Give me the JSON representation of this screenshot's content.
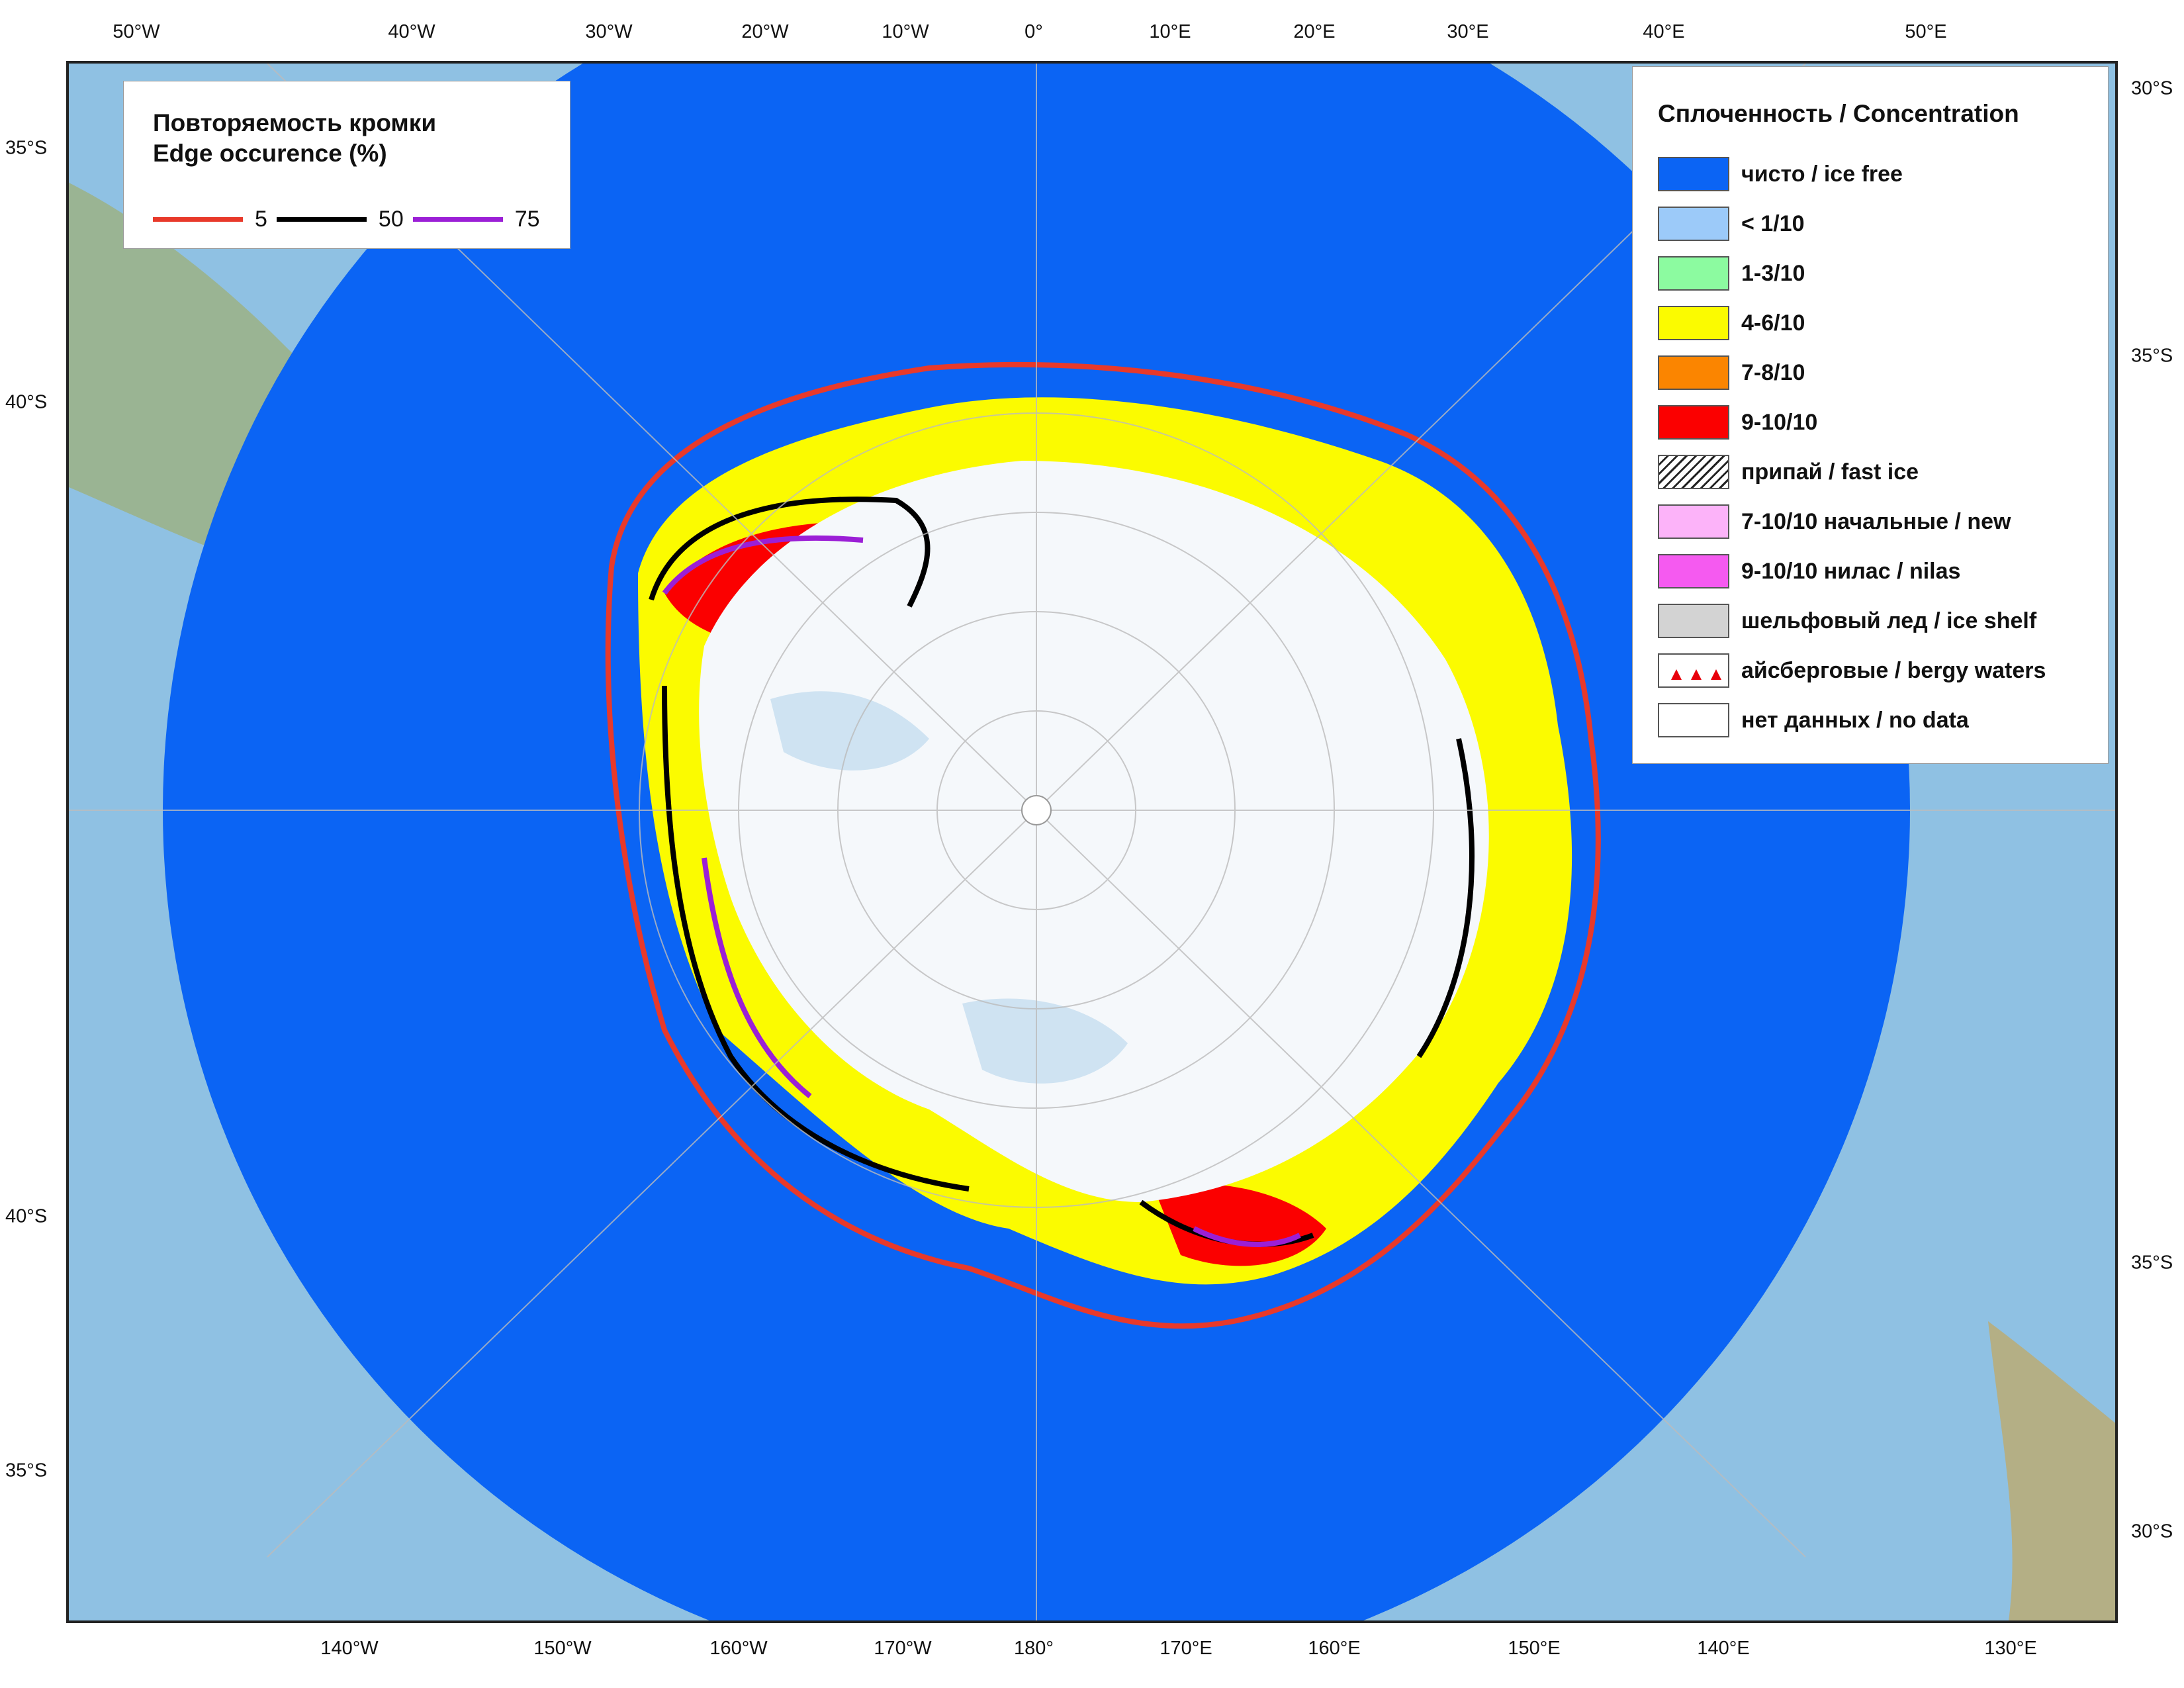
{
  "map": {
    "top_ticks": [
      "50°W",
      "40°W",
      "30°W",
      "20°W",
      "10°W",
      "0°",
      "10°E",
      "20°E",
      "30°E",
      "40°E",
      "50°E"
    ],
    "bottom_ticks": [
      "140°W",
      "150°W",
      "160°W",
      "170°W",
      "180°",
      "170°E",
      "160°E",
      "150°E",
      "140°E",
      "130°E"
    ],
    "left_ticks": [
      "35°S",
      "40°S",
      "40°S",
      "35°S"
    ],
    "right_ticks": [
      "30°S",
      "35°S",
      "35°S",
      "30°S"
    ]
  },
  "edge_legend": {
    "title": "Повторяемость кромки\nEdge occurence (%)",
    "items": [
      {
        "value": "5",
        "color": "#e8392a"
      },
      {
        "value": "50",
        "color": "#000000"
      },
      {
        "value": "75",
        "color": "#9b1fd6"
      }
    ]
  },
  "concentration_legend": {
    "title": "Сплоченность / Concentration",
    "items": [
      {
        "label": "чисто / ice free",
        "color": "#0b64f4",
        "pattern": "solid"
      },
      {
        "label": "< 1/10",
        "color": "#9ccaf9",
        "pattern": "solid"
      },
      {
        "label": "1-3/10",
        "color": "#8cfba0",
        "pattern": "solid"
      },
      {
        "label": "4-6/10",
        "color": "#fbfb00",
        "pattern": "solid"
      },
      {
        "label": "7-8/10",
        "color": "#fb8500",
        "pattern": "solid"
      },
      {
        "label": "9-10/10",
        "color": "#fb0000",
        "pattern": "solid"
      },
      {
        "label": "припай / fast ice",
        "color": "#ffffff",
        "pattern": "hatch"
      },
      {
        "label": "7-10/10 начальные / new",
        "color": "#fcb3f9",
        "pattern": "solid"
      },
      {
        "label": "9-10/10 нилас / nilas",
        "color": "#f55af0",
        "pattern": "solid"
      },
      {
        "label": "шельфовый лед / ice shelf",
        "color": "#d3d3d3",
        "pattern": "solid"
      },
      {
        "label": "айсберговые / bergy waters",
        "color": "#ffffff",
        "pattern": "triangles"
      },
      {
        "label": "нет данных / no data",
        "color": "#ffffff",
        "pattern": "solid"
      }
    ]
  }
}
